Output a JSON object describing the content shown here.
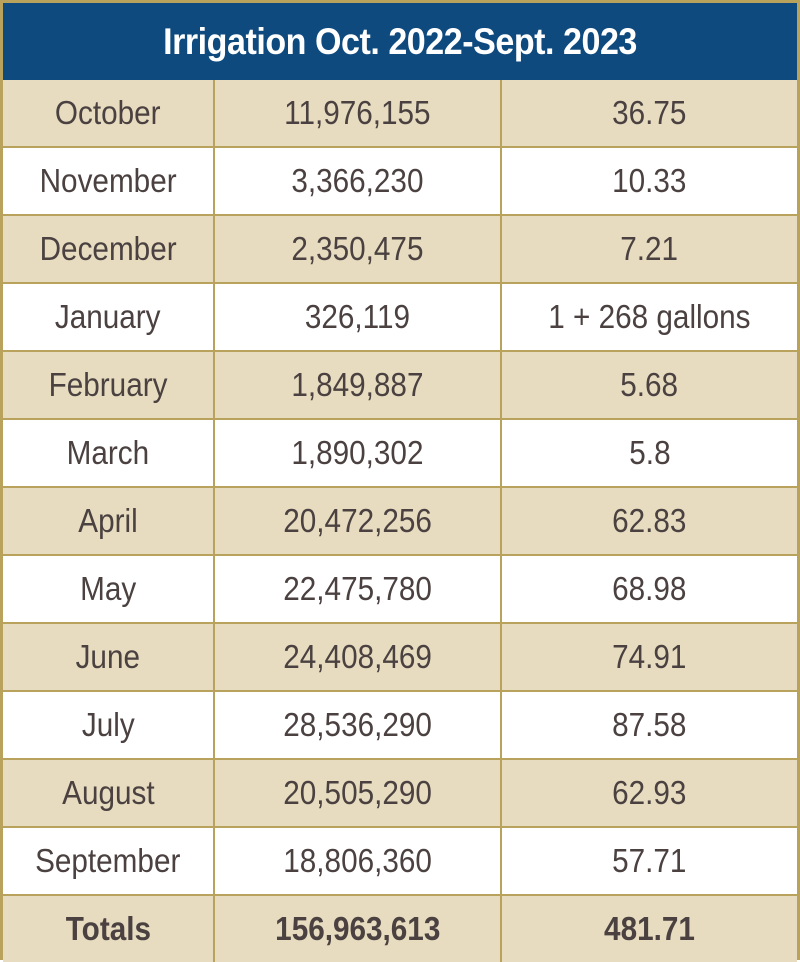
{
  "title": "Irrigation Oct. 2022-Sept. 2023",
  "rows": [
    {
      "month": "October",
      "gallons": "11,976,155",
      "value": "36.75"
    },
    {
      "month": "November",
      "gallons": "3,366,230",
      "value": "10.33"
    },
    {
      "month": "December",
      "gallons": "2,350,475",
      "value": "7.21"
    },
    {
      "month": "January",
      "gallons": "326,119",
      "value": "1 + 268 gallons"
    },
    {
      "month": "February",
      "gallons": "1,849,887",
      "value": "5.68"
    },
    {
      "month": "March",
      "gallons": "1,890,302",
      "value": "5.8"
    },
    {
      "month": "April",
      "gallons": "20,472,256",
      "value": "62.83"
    },
    {
      "month": "May",
      "gallons": "22,475,780",
      "value": "68.98"
    },
    {
      "month": "June",
      "gallons": "24,408,469",
      "value": "74.91"
    },
    {
      "month": "July",
      "gallons": "28,536,290",
      "value": "87.58"
    },
    {
      "month": "August",
      "gallons": "20,505,290",
      "value": "62.93"
    },
    {
      "month": "September",
      "gallons": "18,806,360",
      "value": "57.71"
    }
  ],
  "totals": {
    "label": "Totals",
    "gallons": "156,963,613",
    "value": "481.71"
  },
  "colors": {
    "header_bg": "#0e4a7e",
    "shaded_row": "#e7dcc0",
    "border": "#b9a25c",
    "text": "#4a4140"
  }
}
